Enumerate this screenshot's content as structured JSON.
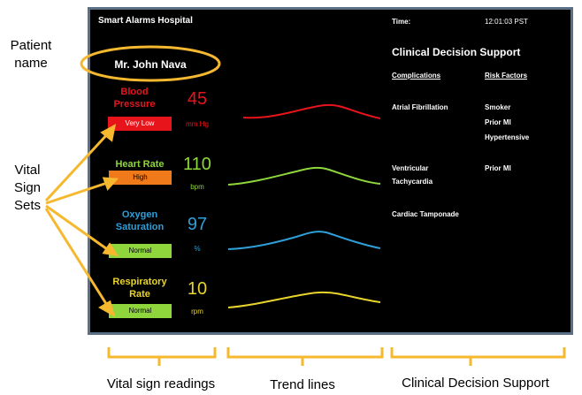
{
  "app": {
    "hospital": "Smart Alarms Hospital",
    "time_label": "Time:",
    "time_value": "12:01:03 PST"
  },
  "patient": {
    "name": "Mr. John Nava"
  },
  "vitals": [
    {
      "name": "Blood Pressure",
      "value": "45",
      "unit": "mm Hg",
      "status": "Very Low",
      "color": "#e8141c",
      "status_color": "#e8141c"
    },
    {
      "name": "Heart Rate",
      "value": "110",
      "unit": "bpm",
      "status": "High",
      "color": "#8ed63c",
      "status_color": "#f07a1a"
    },
    {
      "name": "Oxygen Saturation",
      "value": "97",
      "unit": "%",
      "status": "Normal",
      "color": "#2f9fd8",
      "status_color": "#8ed63c"
    },
    {
      "name": "Respiratory Rate",
      "value": "10",
      "unit": "rpm",
      "status": "Normal",
      "color": "#e8d42a",
      "status_color": "#8ed63c"
    }
  ],
  "cds": {
    "title": "Clinical Decision Support",
    "complications_header": "Complications",
    "risk_header": "Risk Factors",
    "complications": [
      "Atrial Fibrillation",
      "Ventricular Tachycardia",
      "Cardiac Tamponade"
    ],
    "risk_groups": [
      [
        "Smoker",
        "Prior MI",
        "Hypertensive"
      ],
      [
        "Prior MI"
      ]
    ]
  },
  "annotations": {
    "patient_name": "Patient name",
    "vital_sign_sets": "Vital Sign Sets",
    "vital_readings": "Vital sign readings",
    "trend_lines": "Trend lines",
    "cds": "Clinical Decision Support",
    "accent_color": "#f5b82e"
  }
}
